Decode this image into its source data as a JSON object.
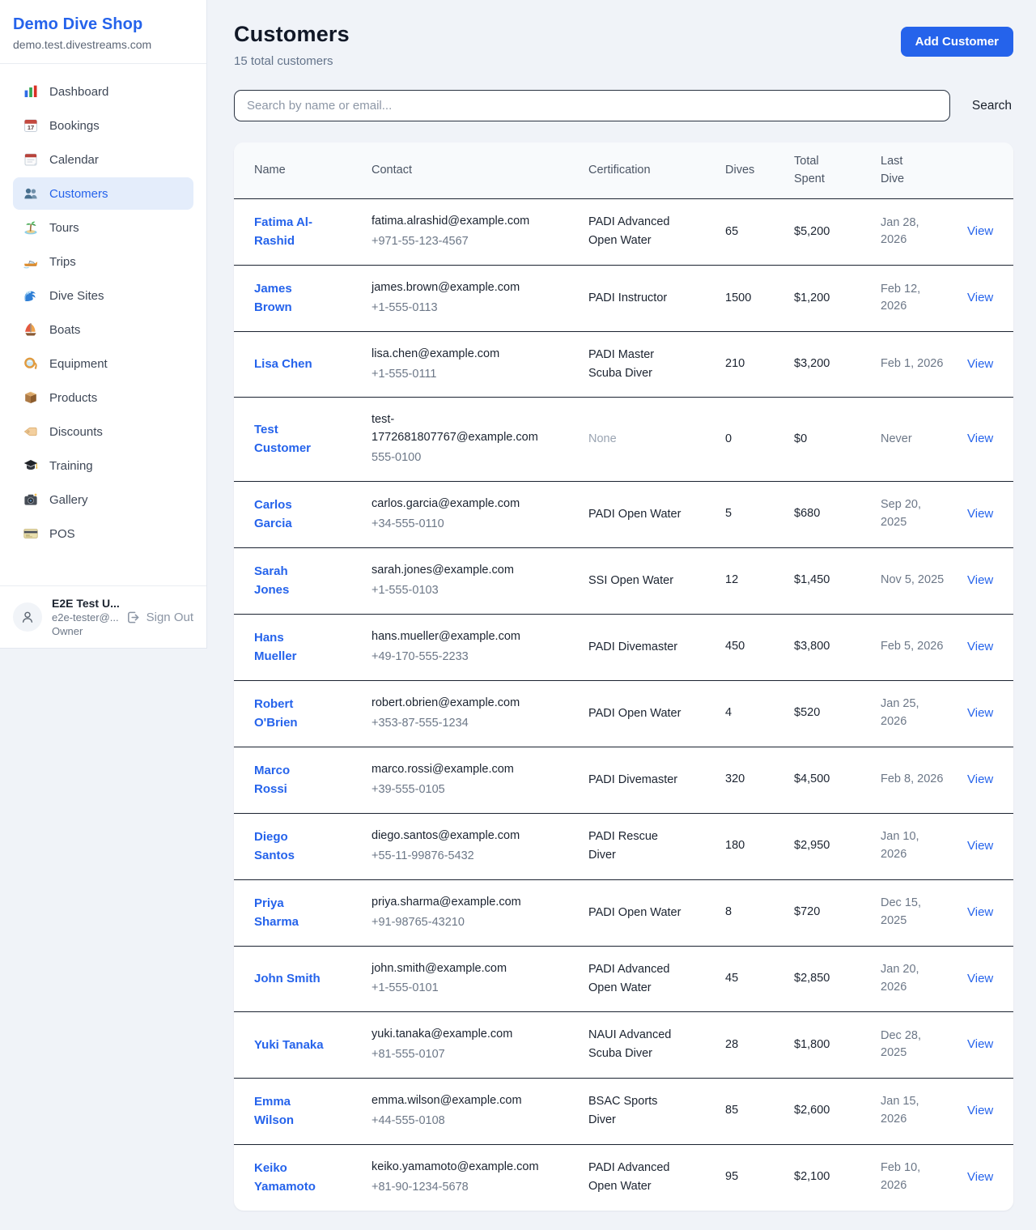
{
  "sidebar": {
    "brand": {
      "title": "Demo Dive Shop",
      "domain": "demo.test.divestreams.com"
    },
    "items": [
      {
        "label": "Dashboard",
        "icon": "dashboard",
        "active": false
      },
      {
        "label": "Bookings",
        "icon": "bookings",
        "active": false
      },
      {
        "label": "Calendar",
        "icon": "calendar",
        "active": false
      },
      {
        "label": "Customers",
        "icon": "customers",
        "active": true
      },
      {
        "label": "Tours",
        "icon": "tours",
        "active": false
      },
      {
        "label": "Trips",
        "icon": "trips",
        "active": false
      },
      {
        "label": "Dive Sites",
        "icon": "dive-sites",
        "active": false
      },
      {
        "label": "Boats",
        "icon": "boats",
        "active": false
      },
      {
        "label": "Equipment",
        "icon": "equipment",
        "active": false
      },
      {
        "label": "Products",
        "icon": "products",
        "active": false
      },
      {
        "label": "Discounts",
        "icon": "discounts",
        "active": false
      },
      {
        "label": "Training",
        "icon": "training",
        "active": false
      },
      {
        "label": "Gallery",
        "icon": "gallery",
        "active": false
      },
      {
        "label": "POS",
        "icon": "pos",
        "active": false
      }
    ],
    "user": {
      "name": "E2E Test U...",
      "email": "e2e-tester@...",
      "role": "Owner",
      "sign_out_label": "Sign Out"
    }
  },
  "header": {
    "title": "Customers",
    "subtitle": "15 total customers",
    "add_button_label": "Add Customer"
  },
  "search": {
    "placeholder": "Search by name or email...",
    "button_label": "Search"
  },
  "table": {
    "columns": [
      "Name",
      "Contact",
      "Certification",
      "Dives",
      "Total Spent",
      "Last Dive"
    ],
    "view_label": "View",
    "rows": [
      {
        "name": "Fatima Al-Rashid",
        "email": "fatima.alrashid@example.com",
        "phone": "+971-55-123-4567",
        "certification": "PADI Advanced Open Water",
        "dives": "65",
        "total_spent": "$5,200",
        "last_dive": "Jan 28, 2026"
      },
      {
        "name": "James Brown",
        "email": "james.brown@example.com",
        "phone": "+1-555-0113",
        "certification": "PADI Instructor",
        "dives": "1500",
        "total_spent": "$1,200",
        "last_dive": "Feb 12, 2026"
      },
      {
        "name": "Lisa Chen",
        "email": "lisa.chen@example.com",
        "phone": "+1-555-0111",
        "certification": "PADI Master Scuba Diver",
        "dives": "210",
        "total_spent": "$3,200",
        "last_dive": "Feb 1, 2026"
      },
      {
        "name": "Test Customer",
        "email": "test-1772681807767@example.com",
        "phone": "555-0100",
        "certification": "None",
        "dives": "0",
        "total_spent": "$0",
        "last_dive": "Never"
      },
      {
        "name": "Carlos Garcia",
        "email": "carlos.garcia@example.com",
        "phone": "+34-555-0110",
        "certification": "PADI Open Water",
        "dives": "5",
        "total_spent": "$680",
        "last_dive": "Sep 20, 2025"
      },
      {
        "name": "Sarah Jones",
        "email": "sarah.jones@example.com",
        "phone": "+1-555-0103",
        "certification": "SSI Open Water",
        "dives": "12",
        "total_spent": "$1,450",
        "last_dive": "Nov 5, 2025"
      },
      {
        "name": "Hans Mueller",
        "email": "hans.mueller@example.com",
        "phone": "+49-170-555-2233",
        "certification": "PADI Divemaster",
        "dives": "450",
        "total_spent": "$3,800",
        "last_dive": "Feb 5, 2026"
      },
      {
        "name": "Robert O'Brien",
        "email": "robert.obrien@example.com",
        "phone": "+353-87-555-1234",
        "certification": "PADI Open Water",
        "dives": "4",
        "total_spent": "$520",
        "last_dive": "Jan 25, 2026"
      },
      {
        "name": "Marco Rossi",
        "email": "marco.rossi@example.com",
        "phone": "+39-555-0105",
        "certification": "PADI Divemaster",
        "dives": "320",
        "total_spent": "$4,500",
        "last_dive": "Feb 8, 2026"
      },
      {
        "name": "Diego Santos",
        "email": "diego.santos@example.com",
        "phone": "+55-11-99876-5432",
        "certification": "PADI Rescue Diver",
        "dives": "180",
        "total_spent": "$2,950",
        "last_dive": "Jan 10, 2026"
      },
      {
        "name": "Priya Sharma",
        "email": "priya.sharma@example.com",
        "phone": "+91-98765-43210",
        "certification": "PADI Open Water",
        "dives": "8",
        "total_spent": "$720",
        "last_dive": "Dec 15, 2025"
      },
      {
        "name": "John Smith",
        "email": "john.smith@example.com",
        "phone": "+1-555-0101",
        "certification": "PADI Advanced Open Water",
        "dives": "45",
        "total_spent": "$2,850",
        "last_dive": "Jan 20, 2026"
      },
      {
        "name": "Yuki Tanaka",
        "email": "yuki.tanaka@example.com",
        "phone": "+81-555-0107",
        "certification": "NAUI Advanced Scuba Diver",
        "dives": "28",
        "total_spent": "$1,800",
        "last_dive": "Dec 28, 2025"
      },
      {
        "name": "Emma Wilson",
        "email": "emma.wilson@example.com",
        "phone": "+44-555-0108",
        "certification": "BSAC Sports Diver",
        "dives": "85",
        "total_spent": "$2,600",
        "last_dive": "Jan 15, 2026"
      },
      {
        "name": "Keiko Yamamoto",
        "email": "keiko.yamamoto@example.com",
        "phone": "+81-90-1234-5678",
        "certification": "PADI Advanced Open Water",
        "dives": "95",
        "total_spent": "$2,100",
        "last_dive": "Feb 10, 2026"
      }
    ]
  },
  "colors": {
    "accent": "#2563eb",
    "active_item_bg": "#e4edfb",
    "row_border": "#1a2230",
    "header_bg": "#f8fafc",
    "page_bg": "#f0f3f8"
  }
}
